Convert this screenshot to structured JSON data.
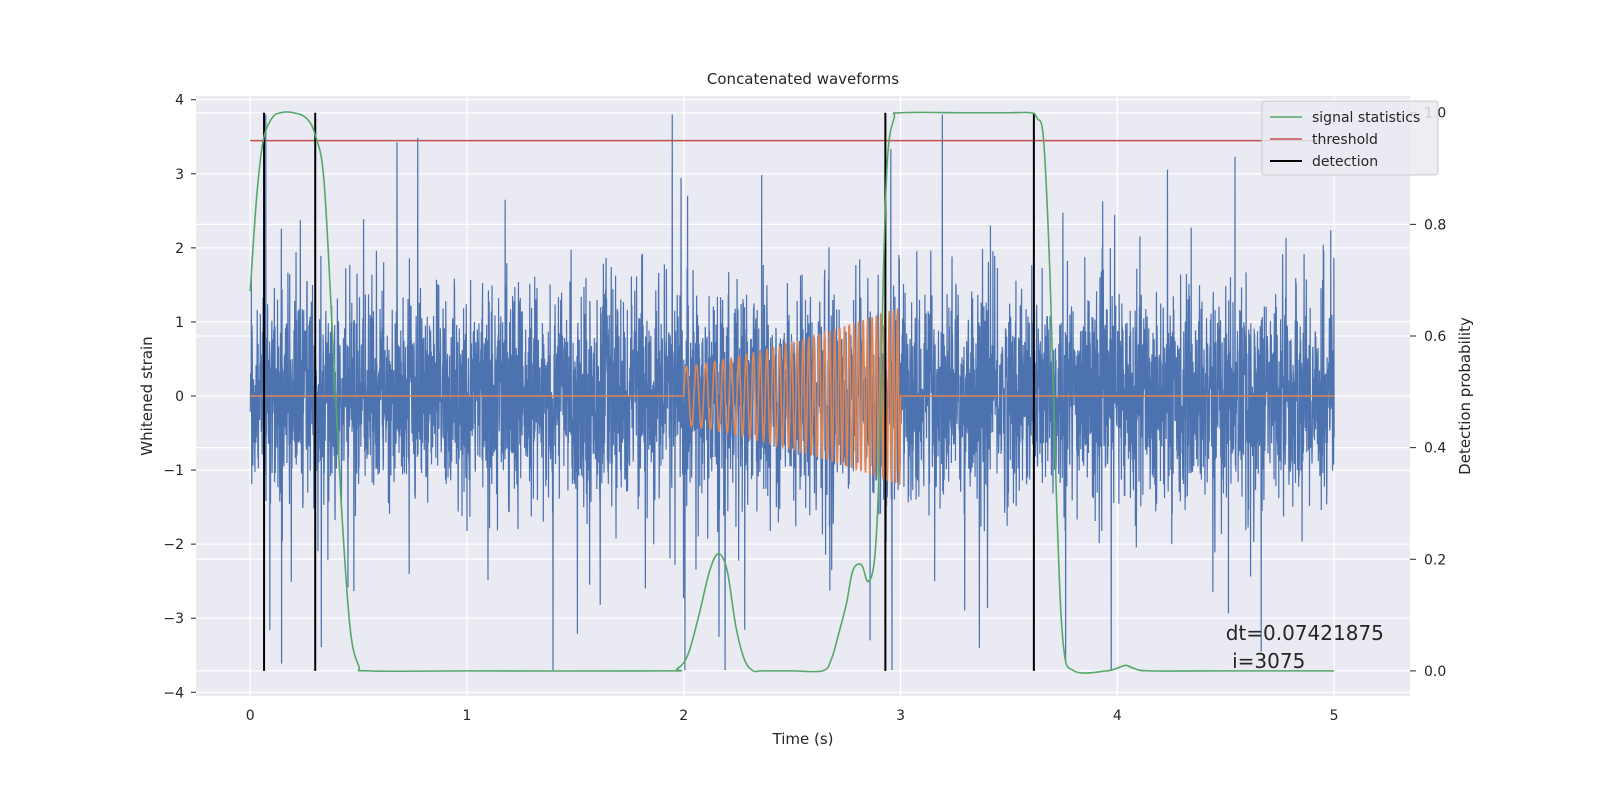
{
  "chart_data": {
    "type": "line",
    "title": "Concatenated waveforms",
    "xlabel": "Time (s)",
    "ylabel": "Whitened strain",
    "y2label": "Detection probability",
    "xlim": [
      -0.25,
      5.35
    ],
    "ylim": [
      -4.05,
      4.05
    ],
    "y2lim": [
      -0.045,
      1.03
    ],
    "xticks": [
      0,
      1,
      2,
      3,
      4,
      5
    ],
    "yticks": [
      -4,
      -3,
      -2,
      -1,
      0,
      1,
      2,
      3,
      4
    ],
    "y2ticks": [
      0.0,
      0.2,
      0.4,
      0.6,
      0.8,
      1.0
    ],
    "grid": true,
    "legend_position": "top-right",
    "colors": {
      "strain": "#4c72b0",
      "template": "#dd8452",
      "statistics": "#55a868",
      "threshold": "#c44e52",
      "detection": "#000000",
      "background": "#eaeaf2",
      "grid": "#ffffff"
    },
    "series": [
      {
        "name": "",
        "role": "strain",
        "x_range": [
          0,
          5
        ],
        "envelope": 1.25,
        "peak_max": 3.8,
        "peak_min": -3.7
      },
      {
        "name": "",
        "role": "template",
        "x_start": 2.0,
        "x_end": 3.0,
        "amp_start": 0.4,
        "amp_end": 1.2,
        "cycles": 37,
        "baseline": 0
      },
      {
        "name": "signal statistics",
        "role": "statistics",
        "axis": "y2",
        "x": [
          0,
          0.03,
          0.06,
          0.1,
          0.14,
          0.2,
          0.26,
          0.3,
          0.34,
          0.38,
          0.42,
          0.46,
          0.5,
          0.55,
          1.0,
          1.9,
          1.97,
          2.02,
          2.07,
          2.12,
          2.16,
          2.2,
          2.24,
          2.28,
          2.32,
          2.36,
          2.5,
          2.64,
          2.68,
          2.71,
          2.75,
          2.78,
          2.82,
          2.85,
          2.88,
          2.9,
          2.92,
          2.94,
          2.97,
          3.0,
          3.3,
          3.5,
          3.6,
          3.63,
          3.66,
          3.69,
          3.72,
          3.75,
          3.8,
          3.95,
          4.0,
          4.04,
          4.08,
          4.15,
          4.5,
          5.0
        ],
        "y": [
          0.68,
          0.85,
          0.95,
          0.99,
          1.0,
          1.0,
          0.99,
          0.96,
          0.88,
          0.6,
          0.3,
          0.08,
          0.01,
          0.0,
          0.0,
          0.0,
          0.004,
          0.03,
          0.1,
          0.18,
          0.21,
          0.18,
          0.08,
          0.02,
          0.0,
          0.0,
          0.0,
          0.0,
          0.02,
          0.06,
          0.12,
          0.18,
          0.19,
          0.16,
          0.2,
          0.35,
          0.7,
          0.92,
          0.99,
          1.0,
          1.0,
          1.0,
          1.0,
          0.99,
          0.95,
          0.7,
          0.3,
          0.05,
          0.0,
          0.0,
          0.005,
          0.01,
          0.004,
          0.0,
          0.0,
          0.0
        ]
      },
      {
        "name": "threshold",
        "role": "threshold",
        "axis": "y2",
        "x": [
          0,
          5
        ],
        "y": [
          0.95,
          0.95
        ]
      },
      {
        "name": "detection",
        "role": "detection",
        "axis": "y2",
        "x": [
          0.064,
          0.3,
          2.93,
          3.615
        ],
        "y_range": [
          0,
          1.0
        ]
      }
    ],
    "annotation": {
      "line1": "dt=0.07421875",
      "line2": " i=3075",
      "x": 4.5,
      "y": -3.2
    }
  }
}
